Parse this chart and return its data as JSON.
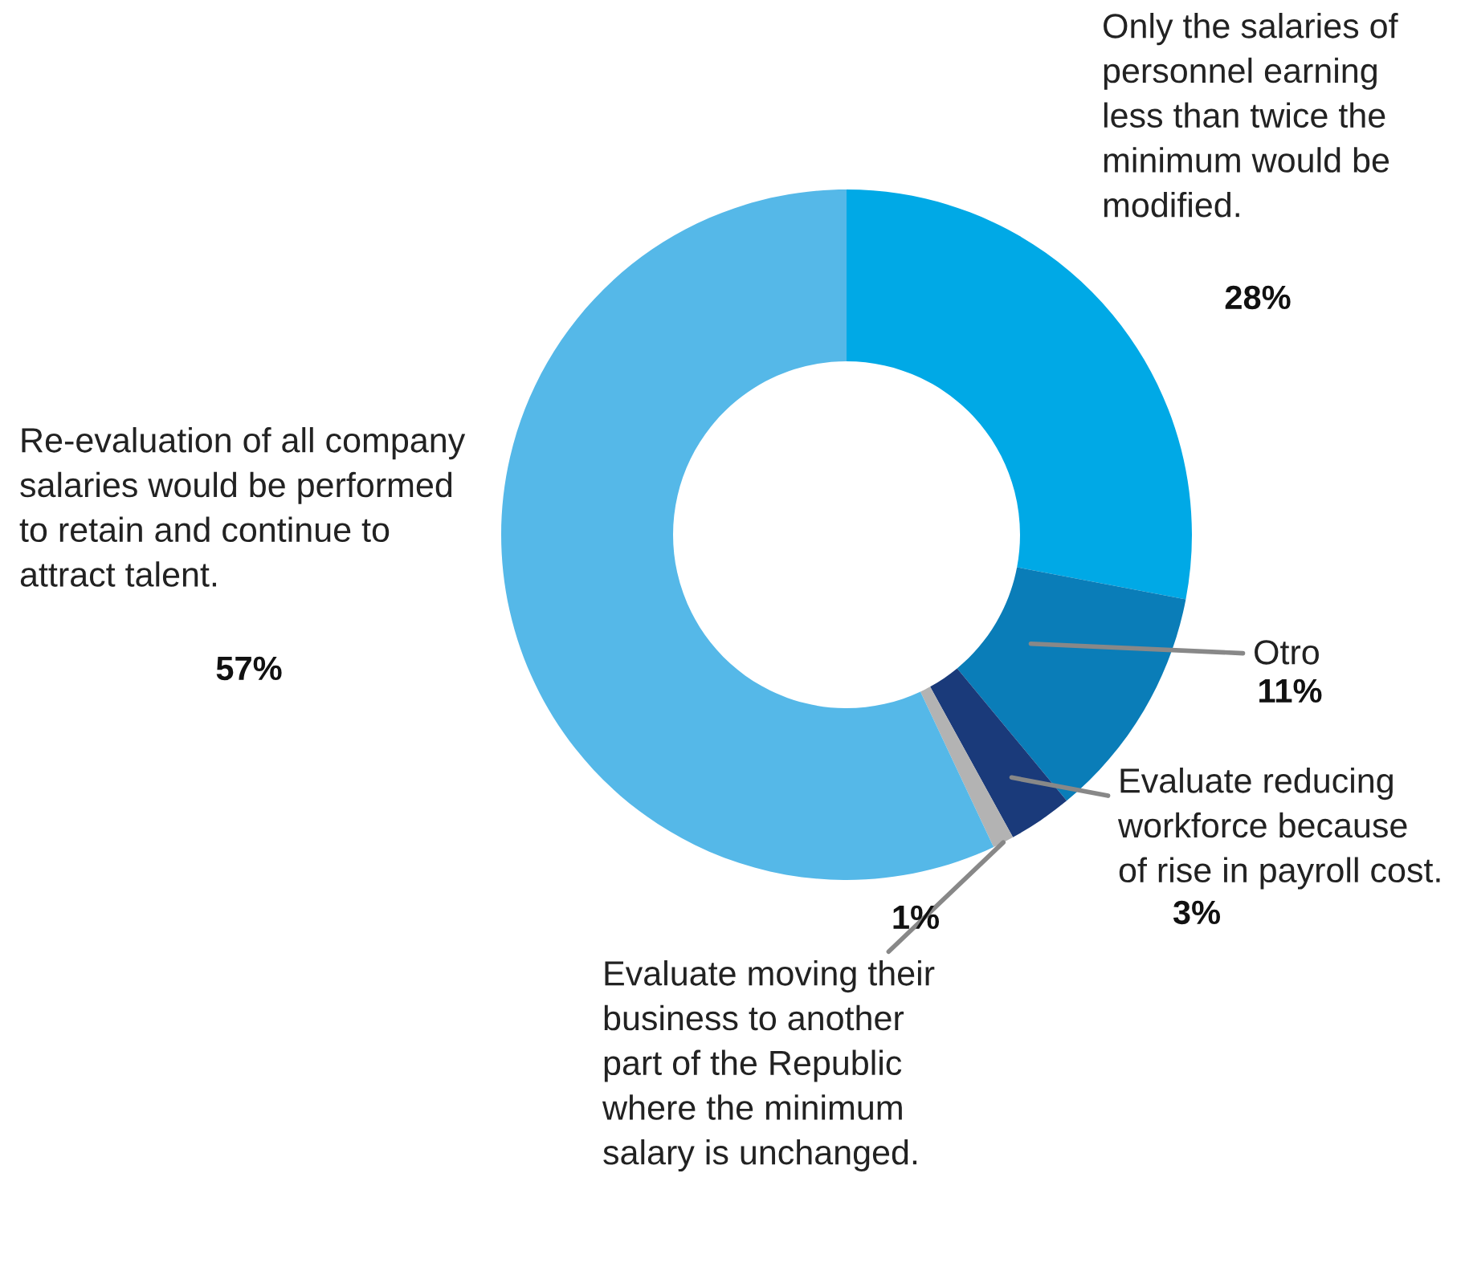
{
  "chart_data": {
    "type": "donut",
    "categories": [
      "Only the salaries of\npersonnel earning\nless than twice the\nminimum would be\nmodified.",
      "Otro",
      "Evaluate reducing\nworkforce because\nof rise in payroll cost.",
      "Evaluate moving their\nbusiness to another\npart of the Republic\nwhere the minimum\nsalary is unchanged.",
      "Re-evaluation of all company\nsalaries would be performed\nto retain and continue to\nattract talent."
    ],
    "values": [
      28,
      11,
      3,
      1,
      57
    ],
    "colors": [
      "#00a9e6",
      "#0a7db8",
      "#1a3a7a",
      "#b3b3b3",
      "#55b8e8"
    ],
    "value_labels": [
      "28%",
      "11%",
      "3%",
      "1%",
      "57%"
    ]
  }
}
